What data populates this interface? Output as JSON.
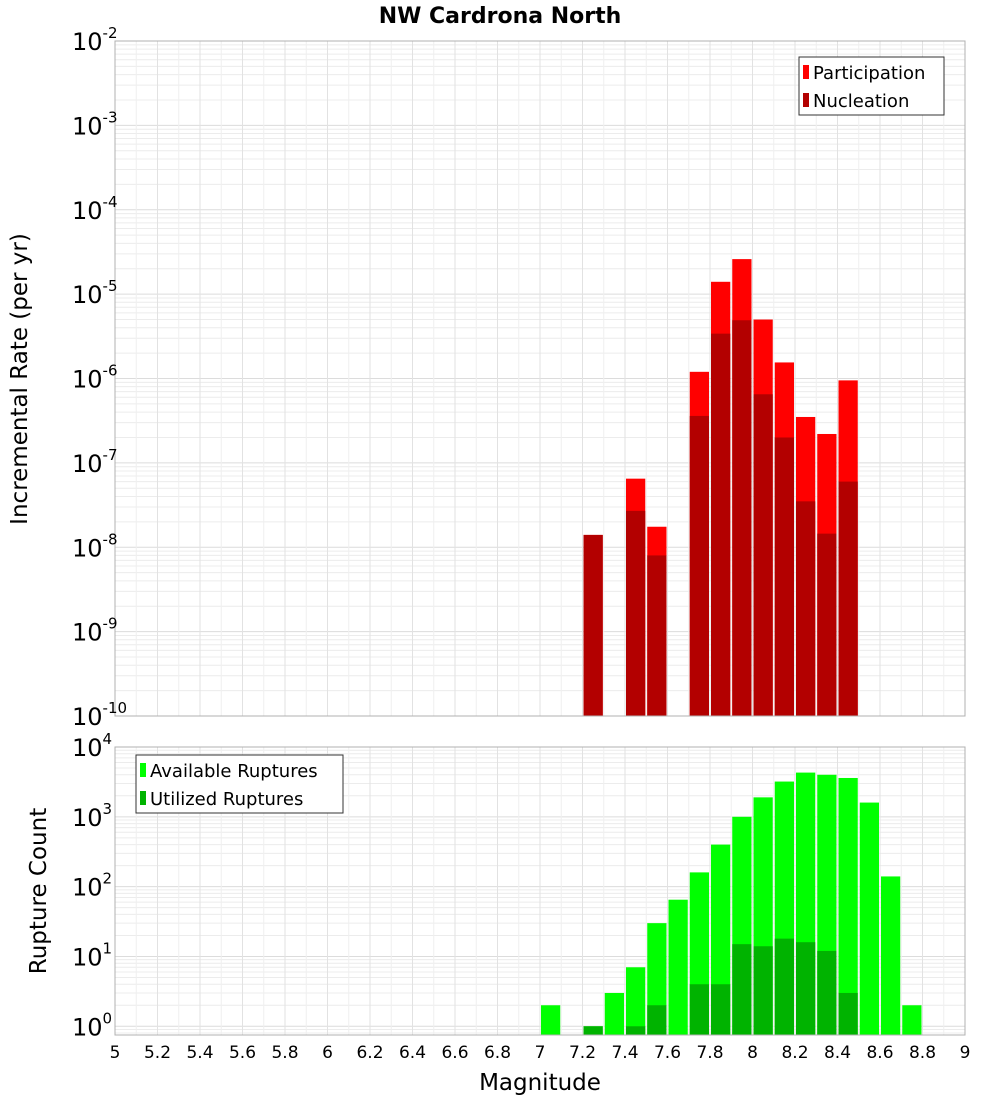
{
  "chart_data": [
    {
      "type": "bar",
      "title": "NW Cardrona North",
      "xlabel": "",
      "ylabel": "Incremental Rate (per yr)",
      "yscale": "log",
      "ylim": [
        1e-10,
        0.01
      ],
      "xlim": [
        5,
        9
      ],
      "bar_width": 0.1,
      "y_ticks": [
        {
          "base": "10",
          "exp": "-2"
        },
        {
          "base": "10",
          "exp": "-3"
        },
        {
          "base": "10",
          "exp": "-4"
        },
        {
          "base": "10",
          "exp": "-5"
        },
        {
          "base": "10",
          "exp": "-6"
        },
        {
          "base": "10",
          "exp": "-7"
        },
        {
          "base": "10",
          "exp": "-8"
        },
        {
          "base": "10",
          "exp": "-9"
        },
        {
          "base": "10",
          "exp": "-10"
        }
      ],
      "legend": {
        "position": "top-right",
        "entries": [
          "Participation",
          "Nucleation"
        ]
      },
      "series": [
        {
          "name": "Participation",
          "color": "#ff0000",
          "x": [
            7.25,
            7.45,
            7.55,
            7.75,
            7.85,
            7.95,
            8.05,
            8.15,
            8.25,
            8.35,
            8.45
          ],
          "values": [
            1.4e-08,
            6.5e-08,
            1.75e-08,
            1.2e-06,
            1.4e-05,
            2.6e-05,
            5e-06,
            1.55e-06,
            3.5e-07,
            2.2e-07,
            9.5e-07
          ]
        },
        {
          "name": "Nucleation",
          "color": "#b30000",
          "x": [
            7.25,
            7.45,
            7.55,
            7.75,
            7.85,
            7.95,
            8.05,
            8.15,
            8.25,
            8.35,
            8.45
          ],
          "values": [
            1.4e-08,
            2.7e-08,
            8e-09,
            3.6e-07,
            3.4e-06,
            4.9e-06,
            6.5e-07,
            2e-07,
            3.5e-08,
            1.45e-08,
            6e-08
          ]
        }
      ],
      "grid": true
    },
    {
      "type": "bar",
      "title": "",
      "xlabel": "Magnitude",
      "ylabel": "Rupture Count",
      "yscale": "log",
      "ylim": [
        0.75,
        10000
      ],
      "xlim": [
        5,
        9
      ],
      "bar_width": 0.1,
      "y_ticks": [
        {
          "value": 10000,
          "base": "10",
          "exp": "4"
        },
        {
          "value": 1000,
          "base": "10",
          "exp": "3"
        },
        {
          "value": 100,
          "base": "10",
          "exp": "2"
        },
        {
          "value": 10,
          "base": "10",
          "exp": "1"
        },
        {
          "value": 1,
          "base": "10",
          "exp": "0"
        }
      ],
      "x_ticks": [
        "5",
        "5.2",
        "5.4",
        "5.6",
        "5.8",
        "6",
        "6.2",
        "6.4",
        "6.6",
        "6.8",
        "7",
        "7.2",
        "7.4",
        "7.6",
        "7.8",
        "8",
        "8.2",
        "8.4",
        "8.6",
        "8.8",
        "9"
      ],
      "legend": {
        "position": "top-left",
        "entries": [
          "Available Ruptures",
          "Utilized Ruptures"
        ]
      },
      "series": [
        {
          "name": "Available Ruptures",
          "color": "#00ff00",
          "x": [
            7.05,
            7.25,
            7.35,
            7.45,
            7.55,
            7.65,
            7.75,
            7.85,
            7.95,
            8.05,
            8.15,
            8.25,
            8.35,
            8.45,
            8.55,
            8.65,
            8.75
          ],
          "values": [
            2,
            1,
            3,
            7,
            30,
            65,
            160,
            400,
            1000,
            1900,
            3200,
            4300,
            4000,
            3600,
            1600,
            140,
            2
          ]
        },
        {
          "name": "Utilized Ruptures",
          "color": "#00b300",
          "x": [
            7.25,
            7.45,
            7.55,
            7.75,
            7.85,
            7.95,
            8.05,
            8.15,
            8.25,
            8.35,
            8.45
          ],
          "values": [
            1,
            1,
            2,
            4,
            4,
            15,
            14,
            18,
            16,
            12,
            3
          ]
        }
      ],
      "grid": true
    }
  ]
}
